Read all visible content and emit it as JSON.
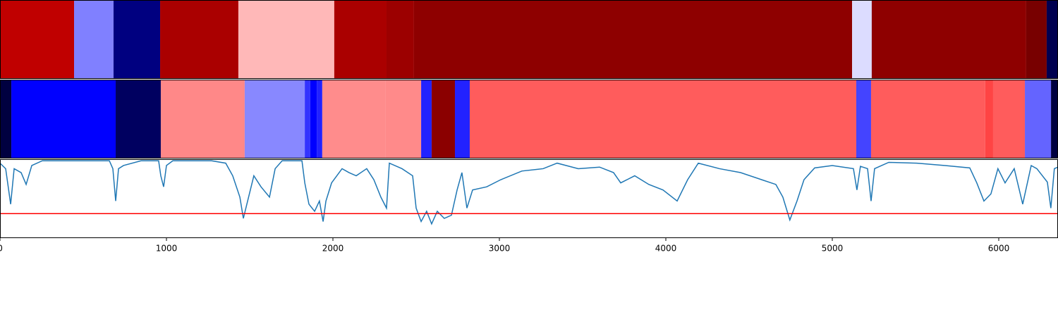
{
  "chart_data": [
    {
      "type": "strip",
      "xlim": [
        0,
        6356
      ],
      "edges": [
        0,
        445,
        682,
        962,
        1432,
        2008,
        2322,
        2487,
        5119,
        5237,
        6165,
        6288,
        6356
      ],
      "colors": [
        "#c00000",
        "#8080ff",
        "#000080",
        "#aa0000",
        "#ffb8b8",
        "#aa0000",
        "#9c0000",
        "#8e0000",
        "#dcdcff",
        "#8e0000",
        "#780000",
        "#000050"
      ]
    },
    {
      "type": "strip",
      "xlim": [
        0,
        6356
      ],
      "edges": [
        0,
        68,
        695,
        966,
        1470,
        1831,
        1864,
        1903,
        1936,
        2314,
        2530,
        2593,
        2733,
        2822,
        5144,
        5233,
        5919,
        5966,
        6157,
        6314,
        6356
      ],
      "colors": [
        "#000040",
        "#0000ff",
        "#000060",
        "#ff8888",
        "#8888ff",
        "#3333ff",
        "#0000ff",
        "#2222ff",
        "#ff8c8c",
        "#ff8a8a",
        "#2222ff",
        "#8b0000",
        "#2222ff",
        "#ff5c5c",
        "#4444ff",
        "#ff5c5c",
        "#ff4444",
        "#ff5c5c",
        "#6464ff",
        "#000040"
      ]
    },
    {
      "type": "line",
      "xlim": [
        0,
        6356
      ],
      "ylim": [
        0,
        1
      ],
      "color": "#1f77b4",
      "hline": 0.31,
      "hline_color": "#ff0000",
      "xticks": [
        0,
        1000,
        2000,
        3000,
        4000,
        5000,
        6000
      ],
      "x": [
        0,
        34,
        64,
        85,
        127,
        157,
        191,
        254,
        424,
        657,
        678,
        695,
        712,
        742,
        847,
        953,
        966,
        983,
        1000,
        1038,
        1271,
        1356,
        1398,
        1441,
        1462,
        1483,
        1525,
        1568,
        1619,
        1653,
        1695,
        1814,
        1831,
        1856,
        1890,
        1919,
        1941,
        1958,
        1992,
        2055,
        2097,
        2140,
        2203,
        2246,
        2288,
        2322,
        2339,
        2415,
        2479,
        2500,
        2530,
        2563,
        2593,
        2627,
        2669,
        2712,
        2746,
        2775,
        2805,
        2839,
        2924,
        3008,
        3135,
        3263,
        3347,
        3474,
        3602,
        3686,
        3729,
        3813,
        3898,
        3983,
        4068,
        4131,
        4195,
        4322,
        4449,
        4576,
        4661,
        4703,
        4745,
        4788,
        4830,
        4894,
        5000,
        5127,
        5148,
        5169,
        5212,
        5233,
        5254,
        5339,
        5508,
        5678,
        5826,
        5868,
        5911,
        5953,
        5995,
        6038,
        6093,
        6144,
        6195,
        6229,
        6292,
        6313,
        6334,
        6356
      ],
      "values": [
        0.95,
        0.88,
        0.43,
        0.88,
        0.83,
        0.68,
        0.92,
        0.98,
        0.98,
        0.98,
        0.88,
        0.47,
        0.88,
        0.92,
        0.98,
        0.98,
        0.79,
        0.65,
        0.92,
        0.98,
        0.98,
        0.95,
        0.79,
        0.52,
        0.25,
        0.43,
        0.79,
        0.65,
        0.52,
        0.88,
        0.98,
        0.98,
        0.7,
        0.43,
        0.34,
        0.47,
        0.21,
        0.47,
        0.7,
        0.88,
        0.83,
        0.79,
        0.88,
        0.74,
        0.52,
        0.38,
        0.95,
        0.88,
        0.79,
        0.38,
        0.21,
        0.34,
        0.18,
        0.34,
        0.25,
        0.29,
        0.61,
        0.83,
        0.38,
        0.61,
        0.65,
        0.74,
        0.85,
        0.88,
        0.95,
        0.88,
        0.9,
        0.83,
        0.7,
        0.79,
        0.68,
        0.61,
        0.47,
        0.74,
        0.95,
        0.88,
        0.83,
        0.74,
        0.68,
        0.52,
        0.23,
        0.47,
        0.74,
        0.89,
        0.92,
        0.88,
        0.61,
        0.91,
        0.88,
        0.47,
        0.88,
        0.96,
        0.95,
        0.92,
        0.89,
        0.7,
        0.47,
        0.56,
        0.88,
        0.7,
        0.88,
        0.43,
        0.92,
        0.88,
        0.71,
        0.38,
        0.88,
        0.9
      ]
    }
  ]
}
